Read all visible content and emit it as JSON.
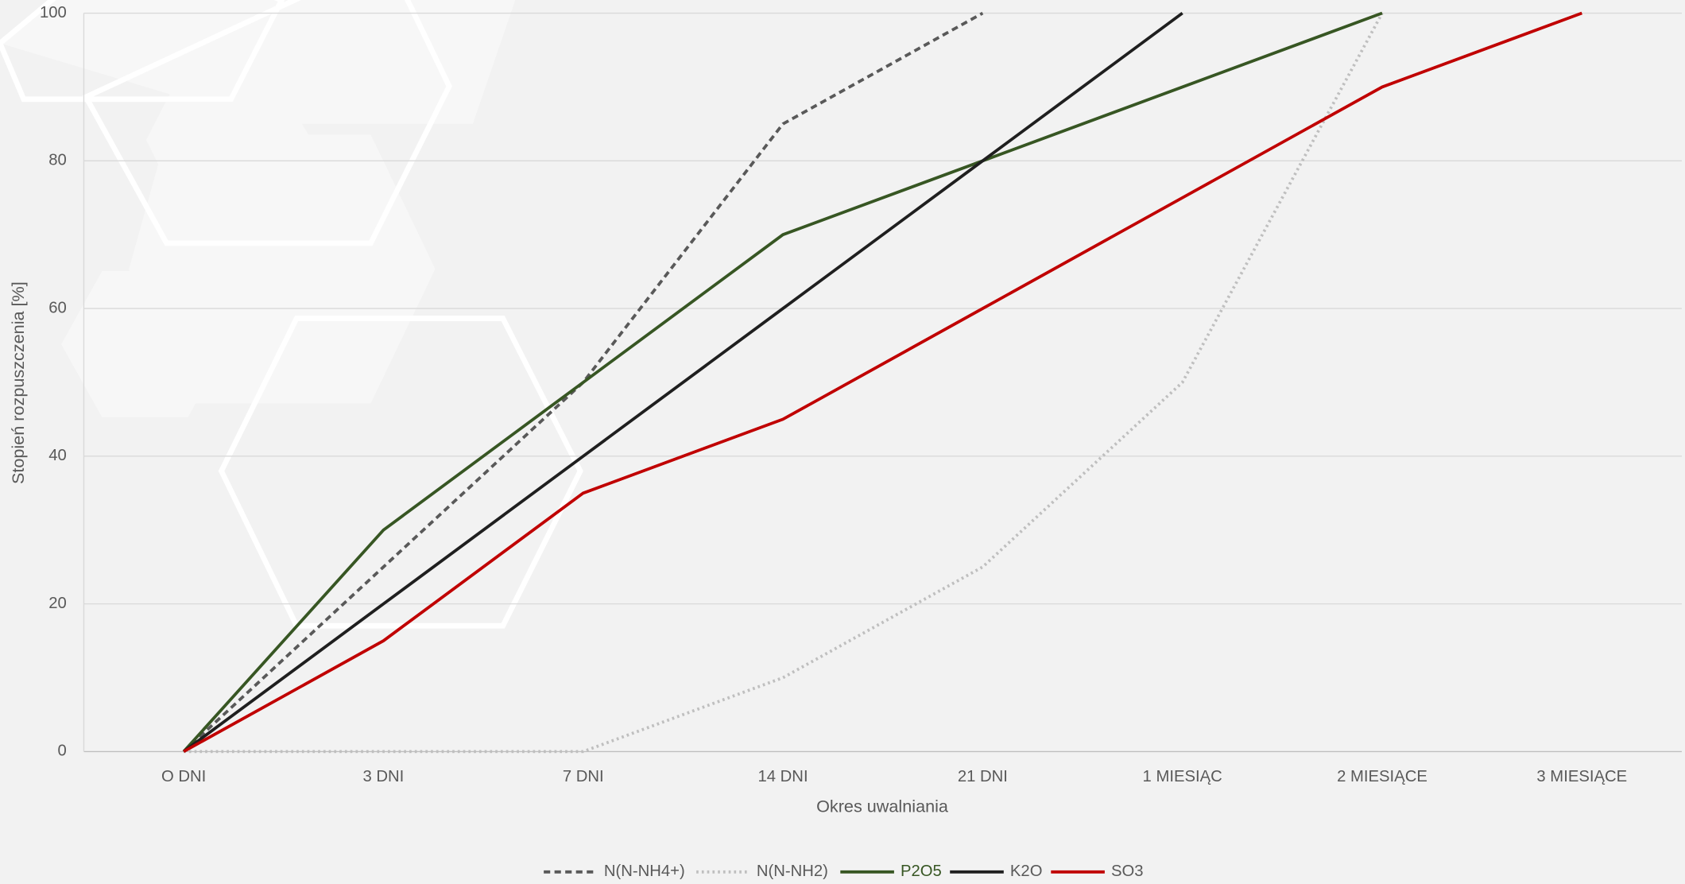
{
  "chart_data": {
    "type": "line",
    "x_label": "Okres uwalniania",
    "y_label": "Stopień rozpuszczenia [%]",
    "categories": [
      "O DNI",
      "3 DNI",
      "7 DNI",
      "14 DNI",
      "21 DNI",
      "1 MIESIĄC",
      "2 MIESIĄCE",
      "3 MIESIĄCE"
    ],
    "series": [
      {
        "name": "N(N-NH4+)",
        "color": "#595959",
        "dash": "dashed",
        "values": [
          0,
          25,
          50,
          85,
          100,
          null,
          null,
          null
        ]
      },
      {
        "name": "N(N-NH2)",
        "color": "#bfbfbf",
        "dash": "dotted",
        "values": [
          0,
          0,
          0,
          10,
          25,
          50,
          100,
          null
        ]
      },
      {
        "name": "P2O5",
        "color": "#375623",
        "dash": "solid",
        "values": [
          0,
          30,
          50,
          70,
          80,
          90,
          100,
          null
        ]
      },
      {
        "name": "K2O",
        "color": "#1f1f1f",
        "dash": "solid",
        "values": [
          0,
          20,
          40,
          60,
          80,
          100,
          null,
          null
        ]
      },
      {
        "name": "SO3",
        "color": "#c00000",
        "dash": "solid",
        "values": [
          0,
          15,
          35,
          45,
          60,
          75,
          90,
          100
        ]
      }
    ],
    "ylim": [
      0,
      100
    ],
    "yticks": [
      0,
      20,
      40,
      60,
      80,
      100
    ],
    "grid": true,
    "legend": "bottom"
  }
}
